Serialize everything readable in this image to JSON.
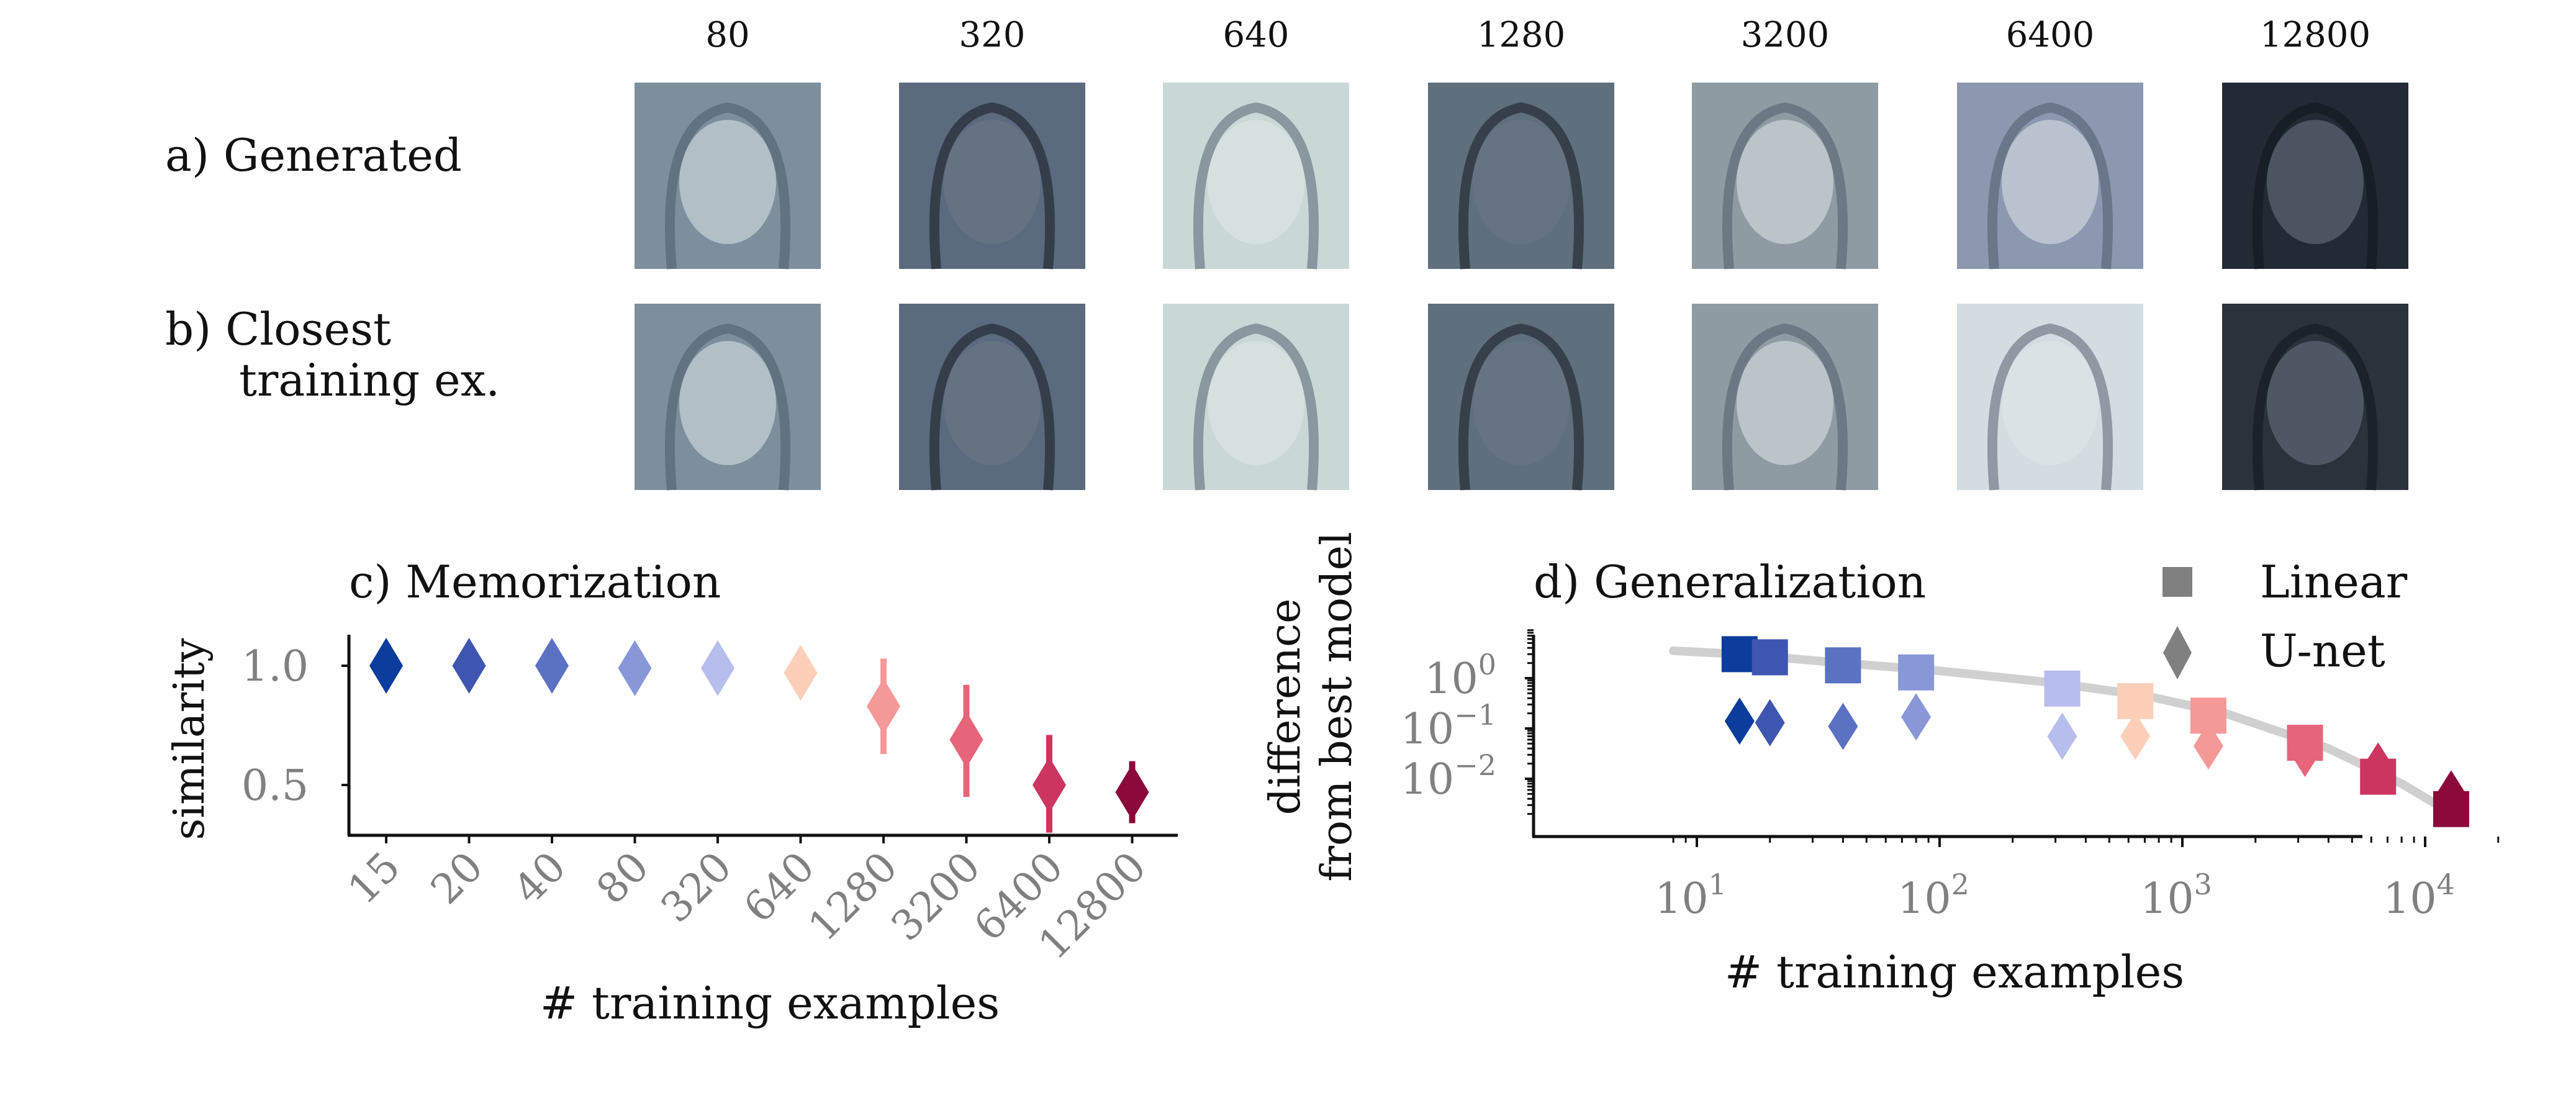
{
  "images": {
    "column_labels": [
      "80",
      "320",
      "640",
      "1280",
      "3200",
      "6400",
      "12800"
    ],
    "row_labels": {
      "generated": "a) Generated",
      "closest_line1": "b) Closest",
      "closest_line2": "training ex."
    },
    "tones": {
      "generated": [
        "#7d8f9c",
        "#5b6a7e",
        "#c9d8d6",
        "#5f6f7c",
        "#8f9ba3",
        "#8b98b0",
        "#222a35"
      ],
      "closest": [
        "#7d8f9c",
        "#5b6a7e",
        "#c9d8d6",
        "#5f6f7c",
        "#8f9ba3",
        "#d2dde2",
        "#2a323c"
      ]
    }
  },
  "chart_data": [
    {
      "type": "scatter",
      "title": "c) Memorization",
      "xlabel": "# training examples",
      "ylabel": "similarity",
      "categories": [
        "15",
        "20",
        "40",
        "80",
        "320",
        "640",
        "1280",
        "3200",
        "6400",
        "12800"
      ],
      "values": [
        1.0,
        1.0,
        1.0,
        0.99,
        0.99,
        0.97,
        0.83,
        0.69,
        0.5,
        0.47
      ],
      "error_low": [
        1.0,
        1.0,
        1.0,
        0.99,
        0.99,
        0.97,
        0.63,
        0.45,
        0.3,
        0.34
      ],
      "error_high": [
        1.0,
        1.0,
        1.0,
        0.99,
        0.99,
        0.97,
        1.03,
        0.92,
        0.71,
        0.6
      ],
      "ylim": [
        0.25,
        1.12
      ],
      "yticks": [
        {
          "value": 0.5,
          "label": "0.5"
        },
        {
          "value": 1.0,
          "label": "1.0"
        }
      ],
      "marker": "diamond",
      "colors": [
        "#0c3c9c",
        "#3e56b0",
        "#5b71c1",
        "#8797d8",
        "#b7bdec",
        "#fdcfb9",
        "#f59898",
        "#e6657a",
        "#cc3560",
        "#8c0a3b"
      ]
    },
    {
      "type": "scatter",
      "title": "d) Generalization",
      "xlabel": "# training examples",
      "ylabel": [
        "difference",
        "from best model"
      ],
      "x_scale": "log",
      "y_scale": "log",
      "xlim": [
        8,
        20000
      ],
      "ylim": [
        0.0016,
        9
      ],
      "xticks": [
        {
          "value": 10,
          "base": "10",
          "exp": "1"
        },
        {
          "value": 100,
          "base": "10",
          "exp": "2"
        },
        {
          "value": 1000,
          "base": "10",
          "exp": "3"
        },
        {
          "value": 10000,
          "base": "10",
          "exp": "4"
        }
      ],
      "yticks": [
        {
          "value": 1,
          "base": "10",
          "exp": "0"
        },
        {
          "value": 0.1,
          "base": "10",
          "exp": "−1"
        },
        {
          "value": 0.01,
          "base": "10",
          "exp": "−2"
        }
      ],
      "legend": {
        "position": "top-right",
        "entries": [
          {
            "name": "Linear",
            "marker": "square"
          },
          {
            "name": "U-net",
            "marker": "diamond"
          }
        ]
      },
      "series": [
        {
          "name": "Linear",
          "marker": "square",
          "x": [
            15,
            20,
            40,
            80,
            320,
            640,
            1280,
            3200,
            6400,
            12800
          ],
          "y": [
            3.0,
            2.6,
            1.8,
            1.3,
            0.62,
            0.35,
            0.18,
            0.052,
            0.011,
            0.0025
          ]
        },
        {
          "name": "U-net",
          "marker": "diamond",
          "x": [
            15,
            20,
            40,
            80,
            320,
            640,
            1280,
            3200,
            6400,
            12800
          ],
          "y": [
            0.14,
            0.13,
            0.11,
            0.17,
            0.07,
            0.07,
            0.045,
            0.032,
            0.018,
            0.005
          ]
        }
      ],
      "trend": {
        "x": [
          8,
          15,
          40,
          100,
          300,
          700,
          1500,
          4000,
          8000,
          12000
        ],
        "y": [
          3.5,
          3.0,
          2.0,
          1.4,
          0.8,
          0.45,
          0.2,
          0.04,
          0.008,
          0.0025
        ],
        "color": "#d0d0d0"
      },
      "colors": [
        "#0c3c9c",
        "#3e56b0",
        "#5b71c1",
        "#8797d8",
        "#b7bdec",
        "#fdcfb9",
        "#f59898",
        "#e6657a",
        "#cc3560",
        "#8c0a3b"
      ]
    }
  ]
}
